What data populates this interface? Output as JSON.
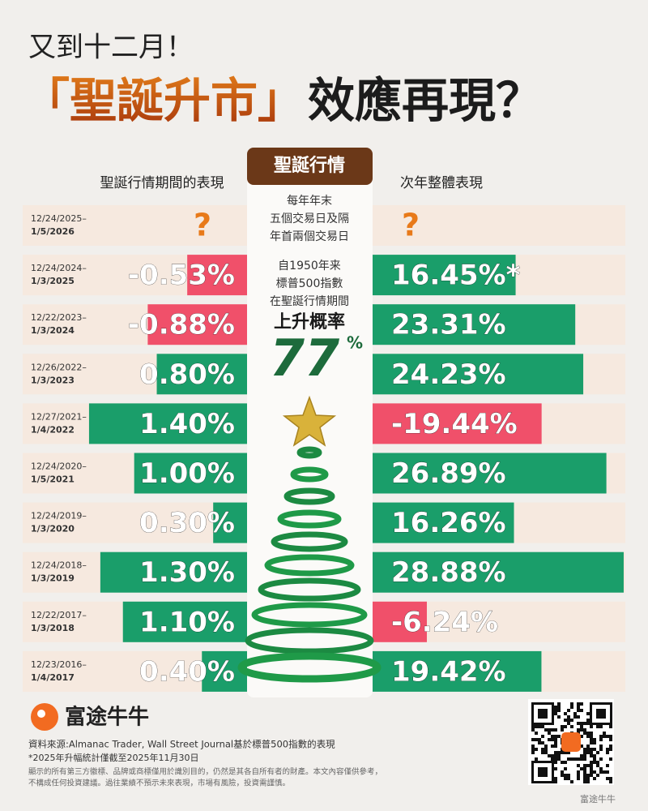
{
  "chart_data": {
    "type": "butterfly",
    "subtitle": "又到十二月！",
    "title_highlight": "「聖誕升市」",
    "title": "效應再現？",
    "center_header": "聖誕行情",
    "center_description": [
      "每年年末",
      "五個交易日及隔",
      "年首兩個交易日"
    ],
    "center_stat_lines": [
      "自1950年来",
      "標普500指數",
      "在聖誕行情期間"
    ],
    "center_stat_title": "上升概率",
    "probability": 77,
    "probability_unit": "%",
    "categories": [
      [
        "12/24/2025–",
        "1/5/2026"
      ],
      [
        "12/24/2024–",
        "1/3/2025"
      ],
      [
        "12/22/2023–",
        "1/3/2024"
      ],
      [
        "12/26/2022–",
        "1/3/2023"
      ],
      [
        "12/27/2021–",
        "1/4/2022"
      ],
      [
        "12/24/2020–",
        "1/5/2021"
      ],
      [
        "12/24/2019–",
        "1/3/2020"
      ],
      [
        "12/24/2018–",
        "1/3/2019"
      ],
      [
        "12/22/2017–",
        "1/3/2018"
      ],
      [
        "12/23/2016–",
        "1/4/2017"
      ]
    ],
    "series": [
      {
        "name": "聖誕行情期間的表現",
        "color": "#1a9e6a",
        "negative_color": "#f0506a",
        "xlim": [
          0,
          1.5
        ],
        "values": [
          null,
          -0.53,
          -0.88,
          0.8,
          1.4,
          1.0,
          0.3,
          1.3,
          1.1,
          0.4
        ],
        "value_labels": [
          "?",
          "-0.53%",
          "-0.88%",
          "0.80%",
          "1.40%",
          "1.00%",
          "0.30%",
          "1.30%",
          "1.10%",
          "0.40%"
        ]
      },
      {
        "name": "次年整體表現",
        "color": "#1a9e6a",
        "negative_color": "#f0506a",
        "xlim": [
          0,
          30
        ],
        "values": [
          null,
          16.45,
          23.31,
          24.23,
          -19.44,
          26.89,
          16.26,
          28.88,
          -6.24,
          19.42
        ],
        "value_labels": [
          "?",
          "16.45%*",
          "23.31%",
          "24.23%",
          "-19.44%",
          "26.89%",
          "16.26%",
          "28.88%",
          "-6.24%",
          "19.42%"
        ]
      }
    ],
    "brand": "富途牛牛",
    "source": "資料來源:Almanac Trader, Wall Street Journal基於標普500指數的表現",
    "footnote": "*2025年升幅統計僅截至2025年11月30日",
    "disclaimer": [
      "顯示的所有第三方徽標、品牌或商標僅用於識別目的，仍然是其各自所有者的財產。本文內容僅供參考，",
      "不構成任何投資建議。過往業績不預示未來表現，市場有風險，投資需謹慎。"
    ],
    "qr_caption": "富途牛牛"
  }
}
